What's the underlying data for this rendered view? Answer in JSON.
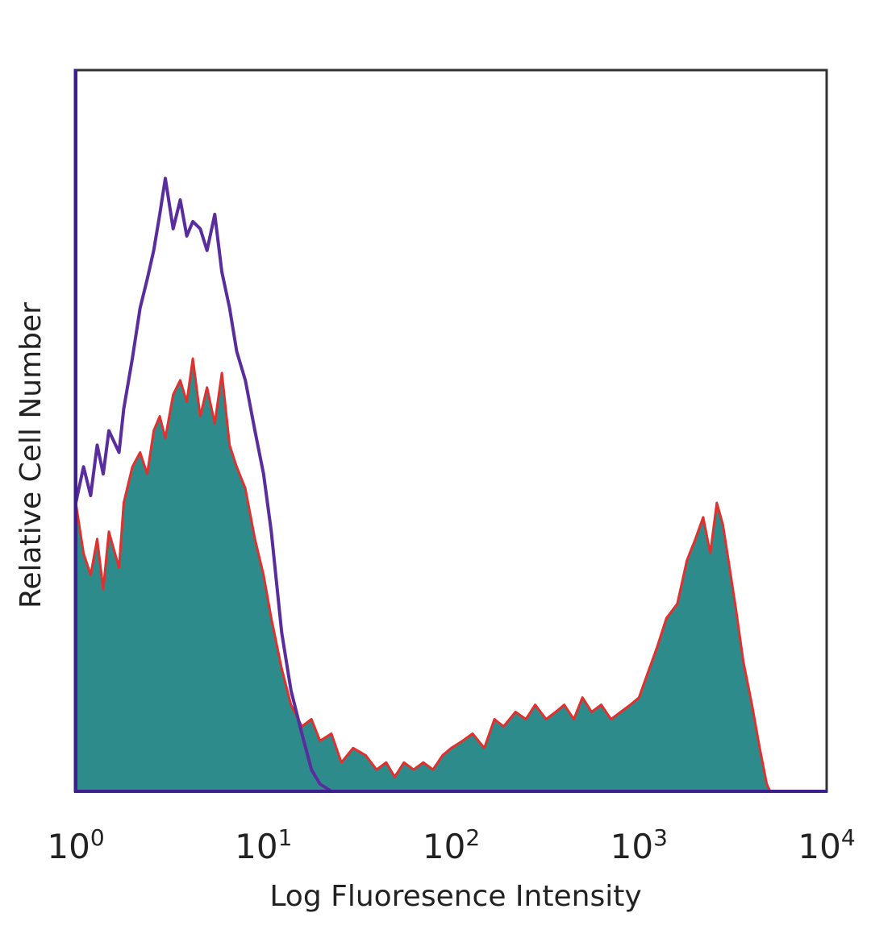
{
  "chart_data": {
    "type": "area",
    "xlabel": "Log Fluoresence Intensity",
    "ylabel": "Relative Cell Number",
    "xscale": "log",
    "xlim": [
      1,
      10000
    ],
    "ylim": [
      0,
      100
    ],
    "grid": false,
    "legend": "none",
    "x_ticks": [
      {
        "value": 1,
        "base": "10",
        "exp": "0"
      },
      {
        "value": 10,
        "base": "10",
        "exp": "1"
      },
      {
        "value": 100,
        "base": "10",
        "exp": "2"
      },
      {
        "value": 1000,
        "base": "10",
        "exp": "3"
      },
      {
        "value": 10000,
        "base": "10",
        "exp": "4"
      }
    ],
    "series": [
      {
        "style": "filled",
        "color": "#2e8b8b",
        "edge_color": "#e0312f",
        "x": [
          1,
          1.1,
          1.2,
          1.3,
          1.4,
          1.5,
          1.7,
          1.8,
          2.0,
          2.2,
          2.4,
          2.6,
          2.8,
          3.0,
          3.3,
          3.6,
          3.9,
          4.2,
          4.6,
          5.0,
          5.5,
          6.0,
          6.6,
          7.2,
          8.0,
          9.0,
          10,
          11,
          12.5,
          14,
          16,
          18,
          20,
          23,
          26,
          30,
          35,
          40,
          45,
          50,
          56,
          63,
          71,
          80,
          90,
          100,
          115,
          130,
          150,
          170,
          190,
          220,
          250,
          280,
          320,
          360,
          400,
          450,
          500,
          560,
          630,
          710,
          800,
          900,
          1000,
          1100,
          1250,
          1400,
          1600,
          1800,
          2000,
          2200,
          2400,
          2600,
          2800,
          3000,
          3300,
          3600,
          4000,
          4400,
          4800,
          5000
        ],
        "values": [
          40,
          33,
          30,
          35,
          28,
          36,
          31,
          40,
          45,
          47,
          44,
          50,
          52,
          49,
          55,
          57,
          54,
          60,
          52,
          56,
          51,
          58,
          48,
          45,
          42,
          35,
          30,
          24,
          17,
          12,
          9,
          10,
          7,
          8,
          4,
          6,
          5,
          3,
          4,
          2,
          4,
          3,
          4,
          3,
          5,
          6,
          7,
          8,
          6,
          10,
          9,
          11,
          10,
          12,
          10,
          11,
          12,
          10,
          13,
          11,
          12,
          10,
          11,
          12,
          13,
          16,
          20,
          24,
          26,
          32,
          35,
          38,
          33,
          40,
          37,
          32,
          25,
          18,
          12,
          6,
          1,
          0
        ]
      },
      {
        "style": "line",
        "color": "#5a2d9e",
        "x": [
          1,
          1.1,
          1.2,
          1.3,
          1.4,
          1.5,
          1.7,
          1.8,
          2.0,
          2.2,
          2.4,
          2.6,
          2.8,
          3.0,
          3.3,
          3.6,
          3.9,
          4.2,
          4.6,
          5.0,
          5.5,
          6.0,
          6.6,
          7.2,
          8.0,
          9.0,
          10,
          11,
          12.5,
          14,
          16,
          18,
          20,
          23,
          26
        ],
        "values": [
          40,
          45,
          41,
          48,
          44,
          50,
          47,
          53,
          60,
          67,
          71,
          75,
          80,
          85,
          78,
          82,
          77,
          79,
          78,
          75,
          80,
          72,
          67,
          61,
          57,
          50,
          44,
          36,
          22,
          14,
          8,
          3,
          1,
          0,
          0
        ]
      }
    ]
  }
}
